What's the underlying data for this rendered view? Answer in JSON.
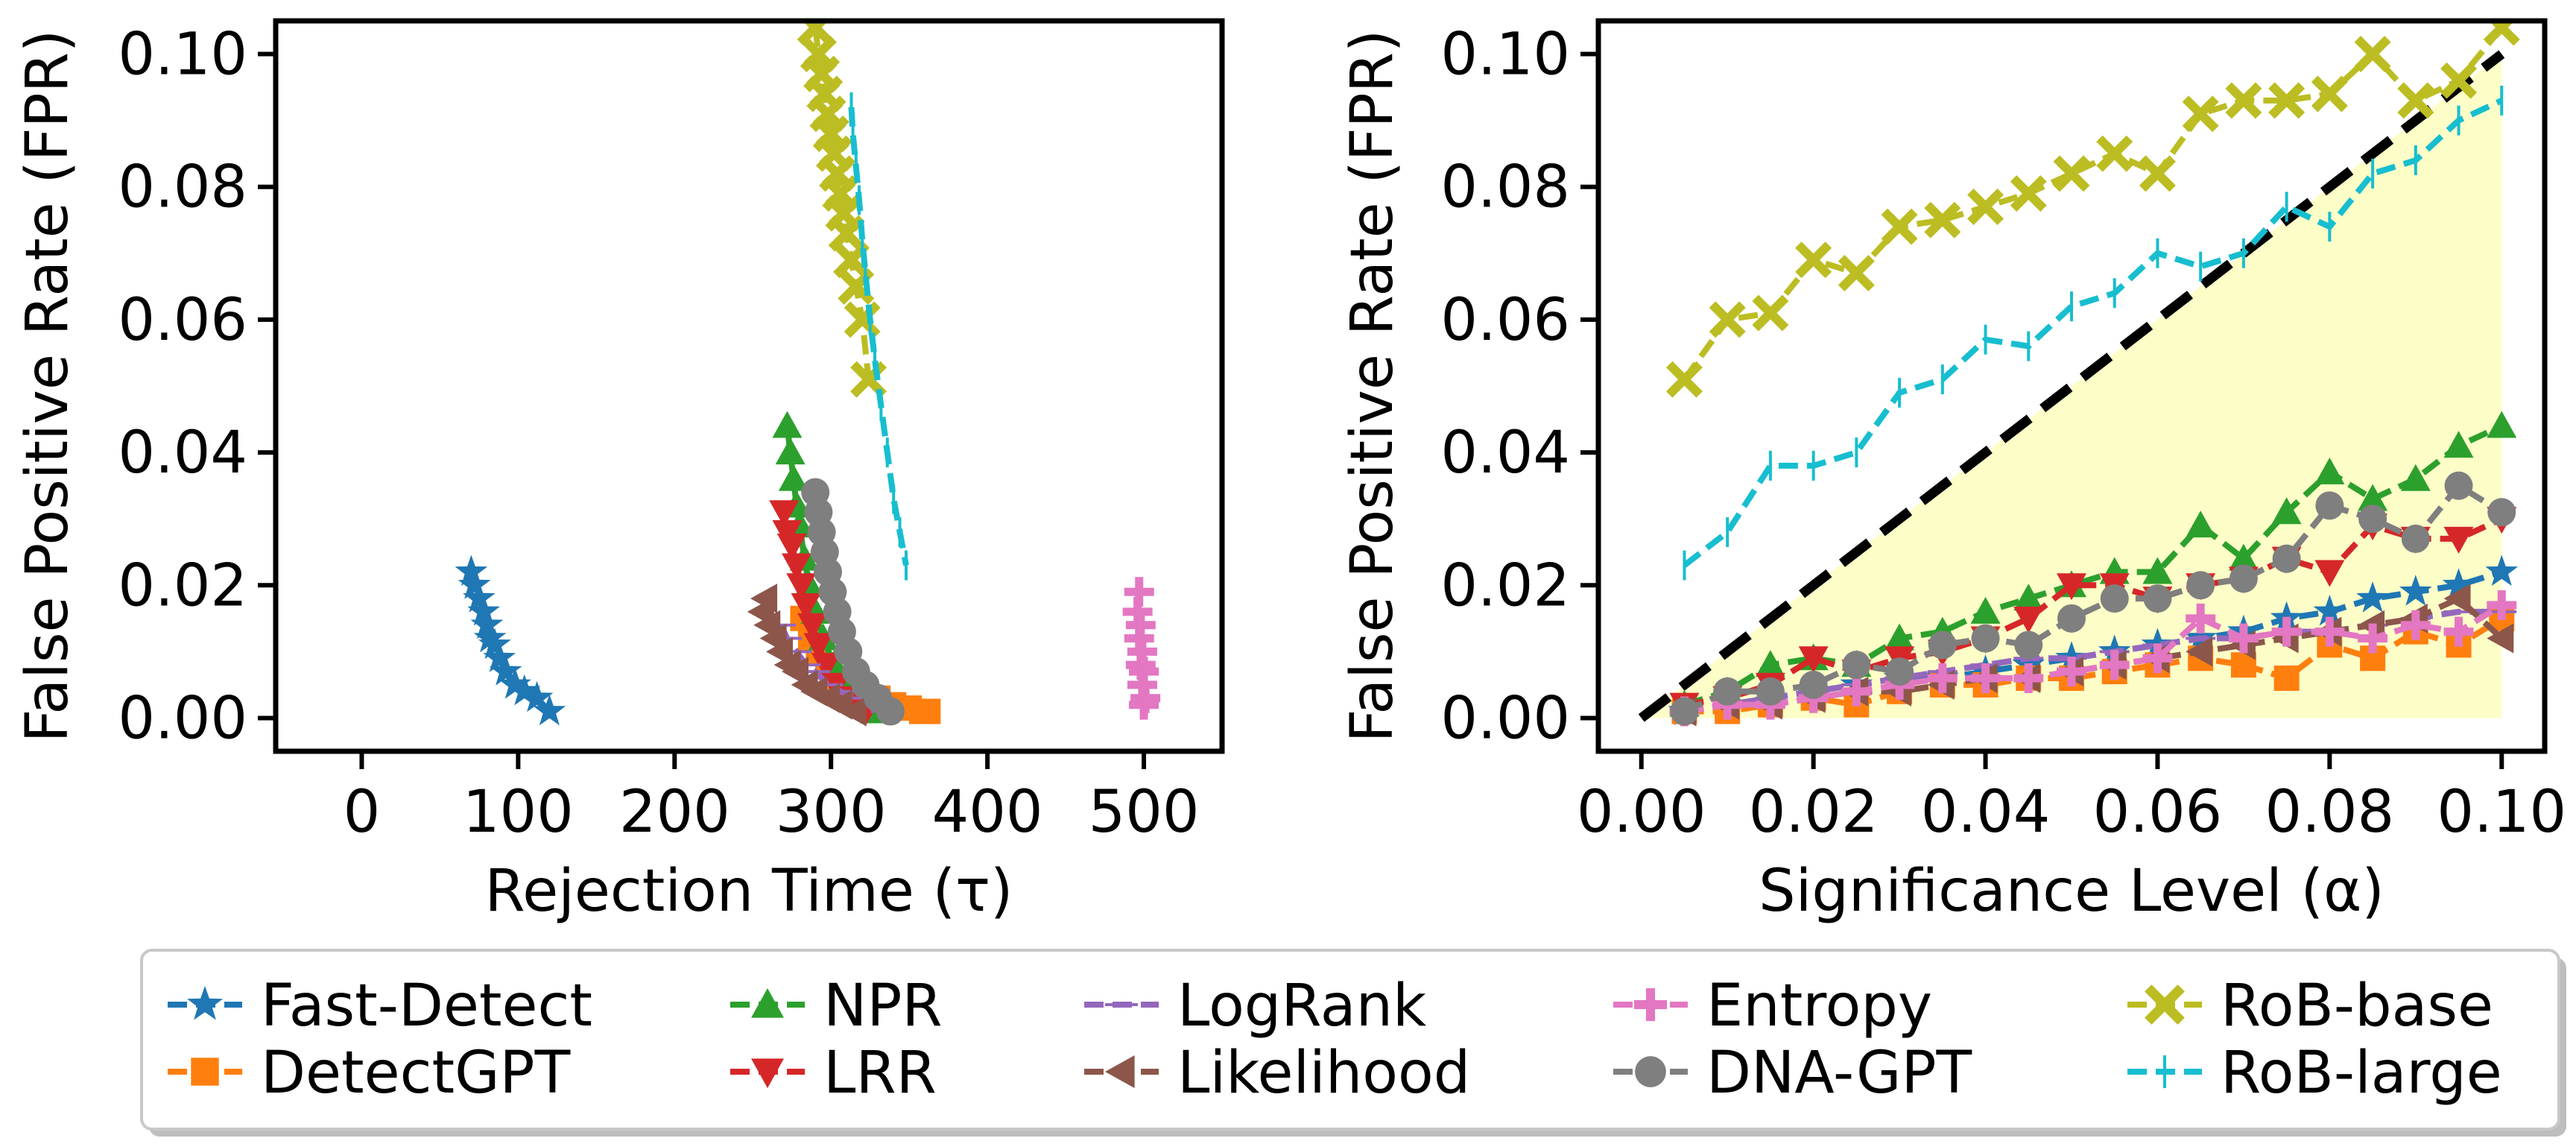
{
  "chart_data": [
    {
      "type": "scatter",
      "panel": "left",
      "xlabel": "Rejection Time (τ)",
      "ylabel": "False Positive Rate (FPR)",
      "xlim": [
        -55,
        550
      ],
      "ylim": [
        -0.005,
        0.105
      ],
      "xticks": [
        0,
        100,
        200,
        300,
        400,
        500
      ],
      "yticks": [
        0.0,
        0.02,
        0.04,
        0.06,
        0.08,
        0.1
      ],
      "xtick_labels": [
        "0",
        "100",
        "200",
        "300",
        "400",
        "500"
      ],
      "ytick_labels": [
        "0.00",
        "0.02",
        "0.04",
        "0.06",
        "0.08",
        "0.10"
      ],
      "series": [
        {
          "name": "Fast-Detect",
          "x": [
            70,
            72,
            75,
            78,
            80,
            82,
            85,
            88,
            92,
            98,
            104,
            112,
            120
          ],
          "y": [
            0.022,
            0.02,
            0.018,
            0.016,
            0.014,
            0.012,
            0.011,
            0.009,
            0.007,
            0.005,
            0.004,
            0.003,
            0.001
          ]
        },
        {
          "name": "DetectGPT",
          "x": [
            282,
            287,
            292,
            298,
            305,
            312,
            320,
            330,
            340,
            350,
            358,
            362
          ],
          "y": [
            0.015,
            0.012,
            0.01,
            0.008,
            0.006,
            0.005,
            0.004,
            0.003,
            0.002,
            0.0015,
            0.001,
            0.001
          ]
        },
        {
          "name": "NPR",
          "x": [
            272,
            274,
            276,
            278,
            280,
            283,
            286,
            290,
            295,
            302,
            310,
            320,
            328
          ],
          "y": [
            0.044,
            0.04,
            0.036,
            0.032,
            0.029,
            0.024,
            0.02,
            0.016,
            0.012,
            0.008,
            0.005,
            0.003,
            0.001
          ]
        },
        {
          "name": "LRR",
          "x": [
            270,
            272,
            275,
            278,
            281,
            284,
            288,
            292,
            297,
            303,
            312,
            322
          ],
          "y": [
            0.031,
            0.028,
            0.026,
            0.023,
            0.02,
            0.017,
            0.014,
            0.011,
            0.008,
            0.005,
            0.003,
            0.001
          ]
        },
        {
          "name": "LogRank",
          "x": [
            268,
            272,
            278,
            284,
            290,
            298,
            306,
            315,
            325,
            335
          ],
          "y": [
            0.014,
            0.012,
            0.01,
            0.008,
            0.007,
            0.005,
            0.004,
            0.003,
            0.002,
            0.001
          ]
        },
        {
          "name": "Likelihood",
          "x": [
            258,
            256,
            260,
            264,
            268,
            273,
            278,
            284,
            290,
            298,
            306,
            315
          ],
          "y": [
            0.018,
            0.016,
            0.014,
            0.012,
            0.01,
            0.008,
            0.007,
            0.005,
            0.004,
            0.003,
            0.002,
            0.001
          ]
        },
        {
          "name": "Entropy",
          "x": [
            497,
            496,
            498,
            497,
            499,
            498,
            500,
            499,
            501,
            500
          ],
          "y": [
            0.019,
            0.016,
            0.014,
            0.012,
            0.01,
            0.008,
            0.007,
            0.005,
            0.003,
            0.002
          ]
        },
        {
          "name": "DNA-GPT",
          "x": [
            290,
            292,
            294,
            296,
            298,
            301,
            304,
            307,
            311,
            316,
            322,
            330,
            338
          ],
          "y": [
            0.034,
            0.031,
            0.028,
            0.025,
            0.022,
            0.019,
            0.016,
            0.013,
            0.01,
            0.007,
            0.005,
            0.003,
            0.001
          ]
        },
        {
          "name": "RoB-base",
          "x": [
            290,
            292,
            294,
            296,
            298,
            300,
            302,
            304,
            306,
            308,
            310,
            313,
            316,
            320,
            324
          ],
          "y": [
            0.104,
            0.1,
            0.097,
            0.094,
            0.091,
            0.088,
            0.085,
            0.082,
            0.079,
            0.076,
            0.073,
            0.069,
            0.065,
            0.06,
            0.051
          ]
        },
        {
          "name": "RoB-large",
          "x": [
            313,
            314,
            316,
            318,
            320,
            322,
            325,
            328,
            332,
            336,
            340,
            344,
            348
          ],
          "y": [
            0.092,
            0.088,
            0.083,
            0.078,
            0.072,
            0.067,
            0.06,
            0.054,
            0.047,
            0.04,
            0.033,
            0.028,
            0.023
          ]
        }
      ]
    },
    {
      "type": "line",
      "panel": "right",
      "xlabel": "Significance Level (α)",
      "ylabel": "False Positive Rate (FPR)",
      "xlim": [
        -0.005,
        0.105
      ],
      "ylim": [
        -0.005,
        0.105
      ],
      "xticks": [
        0.0,
        0.02,
        0.04,
        0.06,
        0.08,
        0.1
      ],
      "yticks": [
        0.0,
        0.02,
        0.04,
        0.06,
        0.08,
        0.1
      ],
      "xtick_labels": [
        "0.00",
        "0.02",
        "0.04",
        "0.06",
        "0.08",
        "0.10"
      ],
      "ytick_labels": [
        "0.00",
        "0.02",
        "0.04",
        "0.06",
        "0.08",
        "0.10"
      ],
      "reference_line": {
        "x": [
          0.0,
          0.1
        ],
        "y": [
          0.0,
          0.1
        ],
        "style": "dashed",
        "color": "#000000"
      },
      "shaded_region": {
        "x": [
          0.0,
          0.1
        ],
        "y_lower": [
          0.0,
          0.0
        ],
        "y_upper": [
          0.0,
          0.1
        ],
        "color": "#fdfdc8"
      },
      "x": [
        0.005,
        0.01,
        0.015,
        0.02,
        0.025,
        0.03,
        0.035,
        0.04,
        0.045,
        0.05,
        0.055,
        0.06,
        0.065,
        0.07,
        0.075,
        0.08,
        0.085,
        0.09,
        0.095,
        0.1
      ],
      "series": [
        {
          "name": "Fast-Detect",
          "values": [
            0.001,
            0.002,
            0.003,
            0.004,
            0.005,
            0.006,
            0.006,
            0.007,
            0.008,
            0.009,
            0.01,
            0.011,
            0.012,
            0.013,
            0.015,
            0.016,
            0.018,
            0.019,
            0.02,
            0.022
          ]
        },
        {
          "name": "DetectGPT",
          "values": [
            0.001,
            0.001,
            0.002,
            0.003,
            0.002,
            0.004,
            0.005,
            0.005,
            0.006,
            0.006,
            0.007,
            0.008,
            0.009,
            0.008,
            0.006,
            0.011,
            0.009,
            0.013,
            0.011,
            0.015
          ]
        },
        {
          "name": "NPR",
          "values": [
            0.002,
            0.004,
            0.008,
            0.009,
            0.008,
            0.012,
            0.013,
            0.016,
            0.018,
            0.02,
            0.022,
            0.022,
            0.029,
            0.024,
            0.031,
            0.037,
            0.033,
            0.036,
            0.041,
            0.044
          ]
        },
        {
          "name": "LRR",
          "values": [
            0.002,
            0.003,
            0.005,
            0.009,
            0.007,
            0.009,
            0.01,
            0.012,
            0.015,
            0.02,
            0.02,
            0.018,
            0.02,
            0.021,
            0.024,
            0.022,
            0.029,
            0.027,
            0.027,
            0.03
          ]
        },
        {
          "name": "LogRank",
          "values": [
            0.001,
            0.002,
            0.003,
            0.004,
            0.005,
            0.006,
            0.007,
            0.008,
            0.009,
            0.009,
            0.01,
            0.011,
            0.012,
            0.012,
            0.013,
            0.013,
            0.014,
            0.015,
            0.016,
            0.016
          ]
        },
        {
          "name": "Likelihood",
          "values": [
            0.001,
            0.002,
            0.002,
            0.003,
            0.004,
            0.004,
            0.005,
            0.006,
            0.006,
            0.007,
            0.008,
            0.009,
            0.01,
            0.011,
            0.012,
            0.013,
            0.014,
            0.015,
            0.018,
            0.012
          ]
        },
        {
          "name": "Entropy",
          "values": [
            0.001,
            0.002,
            0.002,
            0.003,
            0.004,
            0.005,
            0.006,
            0.006,
            0.006,
            0.007,
            0.008,
            0.009,
            0.015,
            0.012,
            0.013,
            0.013,
            0.012,
            0.014,
            0.013,
            0.017
          ]
        },
        {
          "name": "DNA-GPT",
          "values": [
            0.001,
            0.004,
            0.004,
            0.005,
            0.008,
            0.007,
            0.011,
            0.012,
            0.011,
            0.015,
            0.018,
            0.018,
            0.02,
            0.021,
            0.024,
            0.032,
            0.03,
            0.027,
            0.035,
            0.031
          ]
        },
        {
          "name": "RoB-base",
          "values": [
            0.051,
            0.06,
            0.061,
            0.069,
            0.067,
            0.074,
            0.075,
            0.077,
            0.079,
            0.082,
            0.085,
            0.082,
            0.091,
            0.093,
            0.093,
            0.094,
            0.1,
            0.093,
            0.096,
            0.104
          ]
        },
        {
          "name": "RoB-large",
          "values": [
            0.023,
            0.028,
            0.038,
            0.038,
            0.04,
            0.049,
            0.051,
            0.057,
            0.056,
            0.062,
            0.064,
            0.07,
            0.068,
            0.07,
            0.077,
            0.074,
            0.082,
            0.084,
            0.09,
            0.093
          ]
        }
      ]
    }
  ],
  "legend": {
    "location": "bottom-center",
    "columns": 5,
    "entries": [
      {
        "label": "Fast-Detect",
        "color": "#1f77b4",
        "marker": "star"
      },
      {
        "label": "DetectGPT",
        "color": "#ff7f0e",
        "marker": "square"
      },
      {
        "label": "NPR",
        "color": "#2ca02c",
        "marker": "triangle-up"
      },
      {
        "label": "LRR",
        "color": "#d62728",
        "marker": "triangle-down"
      },
      {
        "label": "LogRank",
        "color": "#9467bd",
        "marker": "hline"
      },
      {
        "label": "Likelihood",
        "color": "#8c564b",
        "marker": "triangle-left"
      },
      {
        "label": "Entropy",
        "color": "#e377c2",
        "marker": "plus"
      },
      {
        "label": "DNA-GPT",
        "color": "#7f7f7f",
        "marker": "circle"
      },
      {
        "label": "RoB-base",
        "color": "#bcbd22",
        "marker": "x"
      },
      {
        "label": "RoB-large",
        "color": "#17becf",
        "marker": "vline"
      }
    ]
  }
}
